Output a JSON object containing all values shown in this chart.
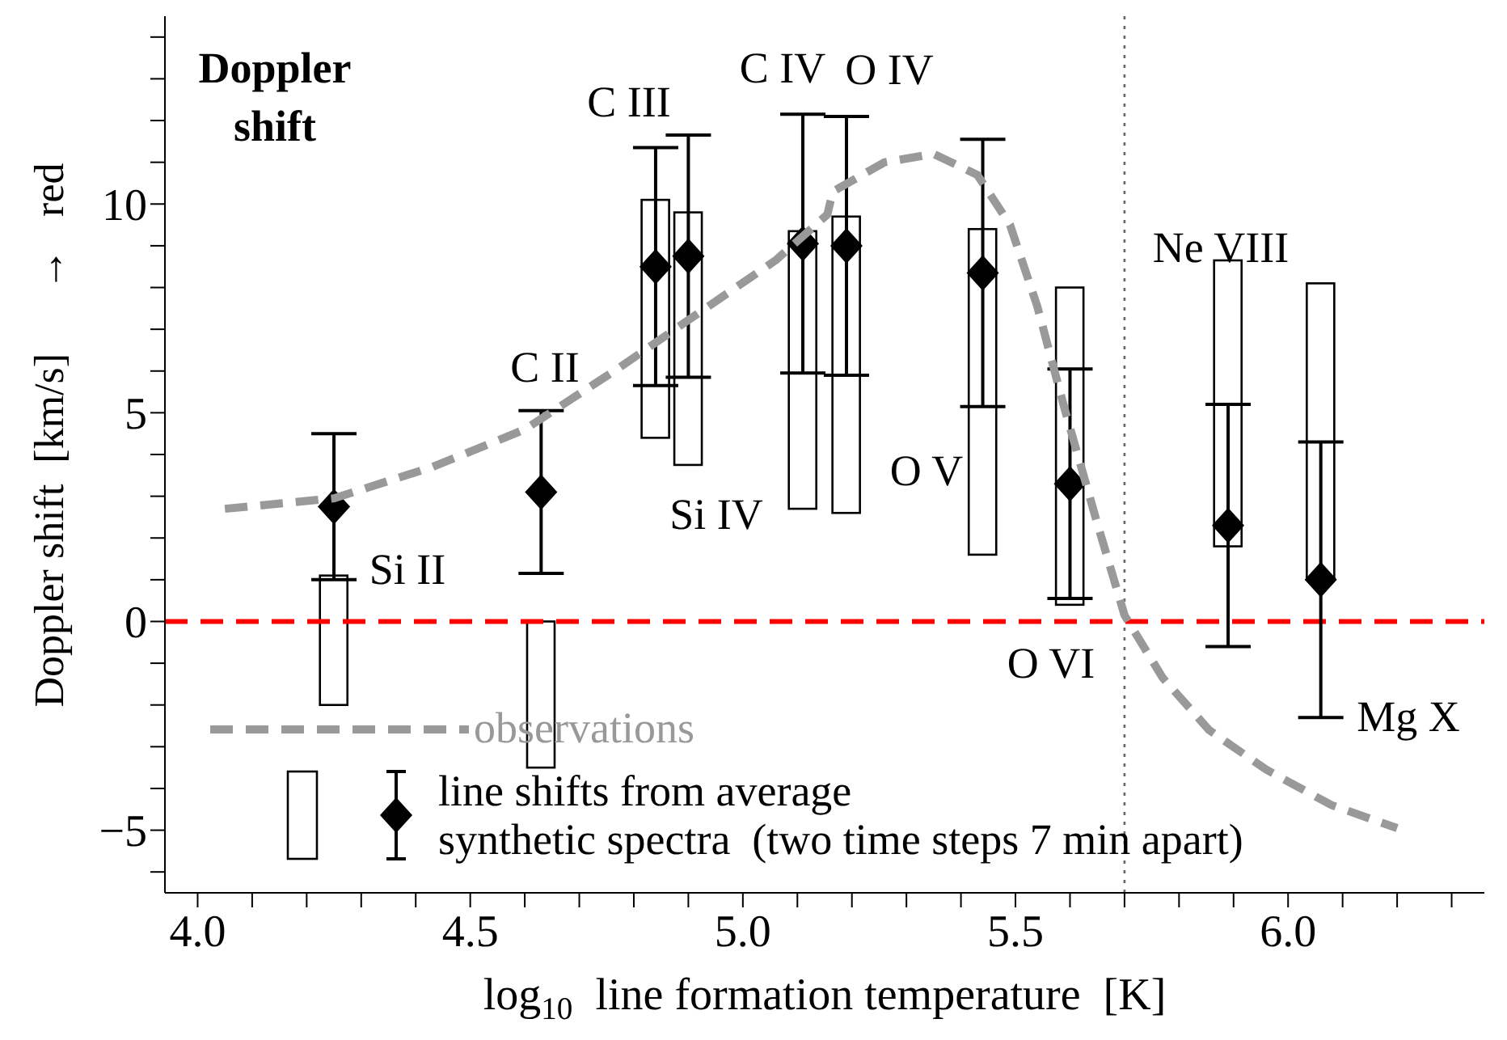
{
  "chart_data": {
    "type": "scatter",
    "title": "Doppler shift",
    "xlabel": "log$_{10}$  line formation temperature  [K]",
    "ylabel": "Doppler shift  [km/s]      →   red",
    "xlim": [
      3.94,
      6.36
    ],
    "ylim": [
      -6.5,
      14.5
    ],
    "xticks": [
      {
        "value": 4,
        "label": "4.0"
      },
      {
        "value": 4.1,
        "label": null
      },
      {
        "value": 4.2,
        "label": null
      },
      {
        "value": 4.3,
        "label": null
      },
      {
        "value": 4.4,
        "label": null
      },
      4.5,
      {
        "value": 4.6,
        "label": null
      },
      {
        "value": 4.7,
        "label": null
      },
      {
        "value": 4.8,
        "label": null
      },
      {
        "value": 4.9,
        "label": null
      },
      {
        "value": 5,
        "label": "5.0"
      },
      {
        "value": 5.1,
        "label": null
      },
      {
        "value": 5.2,
        "label": null
      },
      {
        "value": 5.3,
        "label": null
      },
      {
        "value": 5.4,
        "label": null
      },
      5.5,
      {
        "value": 5.6,
        "label": null
      },
      {
        "value": 5.7,
        "label": null
      },
      {
        "value": 5.8,
        "label": null
      },
      {
        "value": 5.9,
        "label": null
      },
      {
        "value": 6,
        "label": "6.0"
      },
      {
        "value": 6.1,
        "label": null
      },
      {
        "value": 6.2,
        "label": null
      },
      {
        "value": 6.3,
        "label": null
      }
    ],
    "yticks": [
      {
        "value": -6,
        "label": null
      },
      {
        "value": -5,
        "label": "−5"
      },
      {
        "value": -4,
        "label": null
      },
      {
        "value": -3,
        "label": null
      },
      {
        "value": -2,
        "label": null
      },
      {
        "value": -1,
        "label": null
      },
      0,
      {
        "value": 1,
        "label": null
      },
      {
        "value": 2,
        "label": null
      },
      {
        "value": 3,
        "label": null
      },
      {
        "value": 4,
        "label": null
      },
      5,
      {
        "value": 6,
        "label": null
      },
      {
        "value": 7,
        "label": null
      },
      {
        "value": 8,
        "label": null
      },
      {
        "value": 9,
        "label": null
      },
      10,
      {
        "value": 11,
        "label": null
      },
      {
        "value": 12,
        "label": null
      },
      {
        "value": 13,
        "label": null
      },
      {
        "value": 14,
        "label": null
      }
    ],
    "legend": "bottom left",
    "series": [
      {
        "type": "bar",
        "name": "synthetic spectra  (two time steps 7 min apart)",
        "color": "#000000",
        "x": [
          4.25,
          4.63,
          4.84,
          4.9,
          5.11,
          5.19,
          5.44,
          5.6,
          5.89,
          6.06
        ],
        "base": [
          -2.0,
          -3.5,
          4.4,
          3.75,
          2.7,
          2.6,
          1.6,
          0.4,
          1.8,
          1.0
        ],
        "values": [
          3.1,
          3.5,
          5.7,
          6.05,
          6.65,
          7.1,
          7.8,
          7.6,
          6.85,
          7.1
        ]
      },
      {
        "name": "line shifts from average",
        "color": "#000000",
        "marker": "diamond",
        "x": [
          4.25,
          4.63,
          4.84,
          4.9,
          5.11,
          5.19,
          5.44,
          5.6,
          5.89,
          6.06
        ],
        "values": [
          2.75,
          3.1,
          8.5,
          8.75,
          9.05,
          9.0,
          8.35,
          3.3,
          2.3,
          1.0
        ],
        "errors": [
          1.75,
          1.95,
          2.85,
          2.9,
          3.1,
          3.1,
          3.2,
          2.75,
          2.9,
          3.3
        ]
      },
      {
        "type": "line",
        "name": "observations",
        "color": "#999999",
        "marker": "none",
        "line_style": "dashed",
        "x": [
          4.05,
          4.25,
          4.43,
          4.6,
          4.77,
          4.92,
          5.06,
          5.155,
          5.165,
          5.26,
          5.35,
          5.43,
          5.49,
          5.54,
          5.59,
          5.65,
          5.7,
          5.77,
          5.855,
          5.96,
          6.08,
          6.2
        ],
        "values": [
          2.7,
          2.95,
          3.7,
          4.6,
          6.05,
          7.4,
          8.65,
          9.75,
          10.3,
          11.0,
          11.2,
          10.7,
          9.5,
          7.55,
          5.1,
          2.35,
          0.15,
          -1.35,
          -2.6,
          -3.55,
          -4.4,
          -4.95
        ]
      }
    ],
    "ref_lines": [
      {
        "axis": "y",
        "value": 0,
        "color": "#ff0000",
        "line_style": "dashed"
      },
      {
        "axis": "x",
        "value": 5.7,
        "color": "#666666",
        "line_style": "dotted"
      }
    ],
    "annotations": [
      "Si II",
      "C II",
      "C III",
      "Si IV",
      "C IV",
      "O IV",
      "O V",
      "O VI",
      "Ne VIII",
      "Mg X"
    ]
  }
}
